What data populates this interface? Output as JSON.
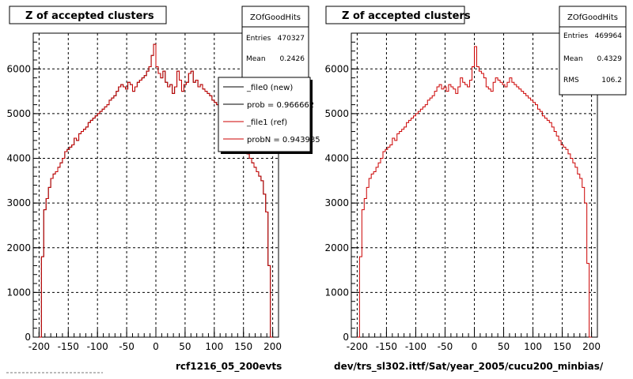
{
  "colors": {
    "background": "#ffffff",
    "frame": "#000000",
    "grid": "#000000",
    "new_hist": "#000000",
    "ref_hist": "#cc0000"
  },
  "chart_data": [
    {
      "type": "histogram",
      "title": "Z of accepted clusters",
      "xlabel": "rcf1216_05_200evts",
      "ylabel": "",
      "xlim": [
        -210,
        210
      ],
      "ylim": [
        0,
        6800
      ],
      "xticks": [
        -200,
        -150,
        -100,
        -50,
        0,
        50,
        100,
        150,
        200
      ],
      "yticks": [
        0,
        1000,
        2000,
        3000,
        4000,
        5000,
        6000
      ],
      "grid": true,
      "stats": {
        "name": "ZOfGoodHits",
        "entries": [
          {
            "label": "Entries",
            "value": "470327"
          },
          {
            "label": "Mean",
            "value": "0.2426"
          }
        ]
      },
      "legend": {
        "position": "top-right",
        "entries": [
          {
            "label": "_file0 (new)",
            "color": "#000000"
          },
          {
            "label": "prob = 0.966662",
            "color": "#000000"
          },
          {
            "label": "_file1 (ref)",
            "color": "#cc0000"
          },
          {
            "label": "probN = 0.943985",
            "color": "#cc0000"
          }
        ]
      },
      "series": [
        {
          "name": "_file0 (new)",
          "color": "#000000"
        },
        {
          "name": "_file1 (ref)",
          "color": "#cc0000"
        }
      ],
      "bins": {
        "edges_start": -200,
        "bin_width": 4,
        "count": 100
      },
      "values": [
        0,
        1800,
        2850,
        3100,
        3350,
        3550,
        3650,
        3700,
        3800,
        3900,
        4000,
        4150,
        4200,
        4250,
        4300,
        4450,
        4400,
        4550,
        4600,
        4650,
        4700,
        4800,
        4850,
        4900,
        4950,
        5000,
        5050,
        5100,
        5150,
        5200,
        5300,
        5350,
        5400,
        5500,
        5600,
        5650,
        5600,
        5550,
        5700,
        5650,
        5500,
        5600,
        5700,
        5750,
        5800,
        5850,
        5950,
        6050,
        6300,
        6550,
        6050,
        5900,
        5800,
        5950,
        5700,
        5600,
        5650,
        5450,
        5600,
        5950,
        5750,
        5500,
        5650,
        5700,
        5900,
        5950,
        5700,
        5750,
        5600,
        5650,
        5550,
        5500,
        5450,
        5400,
        5300,
        5250,
        5200,
        5100,
        5050,
        5000,
        4950,
        4900,
        4800,
        4700,
        4600,
        4500,
        4300,
        4200,
        4150,
        4100,
        4000,
        3900,
        3800,
        3700,
        3600,
        3500,
        3200,
        2800,
        1600,
        0
      ]
    },
    {
      "type": "histogram",
      "title": "Z of accepted clusters",
      "xlabel": "dev/trs_sl302.ittf/Sat/year_2005/cucu200_minbias/",
      "ylabel": "",
      "xlim": [
        -210,
        210
      ],
      "ylim": [
        0,
        6800
      ],
      "xticks": [
        -200,
        -150,
        -100,
        -50,
        0,
        50,
        100,
        150,
        200
      ],
      "yticks": [
        0,
        1000,
        2000,
        3000,
        4000,
        5000,
        6000
      ],
      "grid": true,
      "stats": {
        "name": "ZOfGoodHits",
        "entries": [
          {
            "label": "Entries",
            "value": "469964"
          },
          {
            "label": "Mean",
            "value": "0.4329"
          },
          {
            "label": "RMS",
            "value": "106.2"
          }
        ]
      },
      "series": [
        {
          "name": "",
          "color": "#cc0000"
        }
      ],
      "bins": {
        "edges_start": -200,
        "bin_width": 4,
        "count": 100
      },
      "values": [
        0,
        1800,
        2850,
        3100,
        3350,
        3550,
        3650,
        3700,
        3800,
        3900,
        4000,
        4150,
        4200,
        4250,
        4300,
        4450,
        4400,
        4550,
        4600,
        4650,
        4700,
        4800,
        4850,
        4900,
        4950,
        5000,
        5050,
        5100,
        5150,
        5200,
        5300,
        5350,
        5400,
        5500,
        5600,
        5650,
        5550,
        5600,
        5500,
        5650,
        5600,
        5550,
        5450,
        5600,
        5800,
        5700,
        5650,
        5600,
        5750,
        6050,
        6500,
        6050,
        5950,
        5900,
        5800,
        5600,
        5550,
        5500,
        5700,
        5800,
        5750,
        5700,
        5650,
        5600,
        5700,
        5800,
        5700,
        5650,
        5600,
        5550,
        5500,
        5450,
        5400,
        5350,
        5300,
        5250,
        5200,
        5100,
        5050,
        4950,
        4900,
        4850,
        4800,
        4700,
        4600,
        4500,
        4400,
        4300,
        4250,
        4200,
        4100,
        4000,
        3900,
        3800,
        3650,
        3550,
        3350,
        3000,
        1650,
        0
      ]
    }
  ]
}
